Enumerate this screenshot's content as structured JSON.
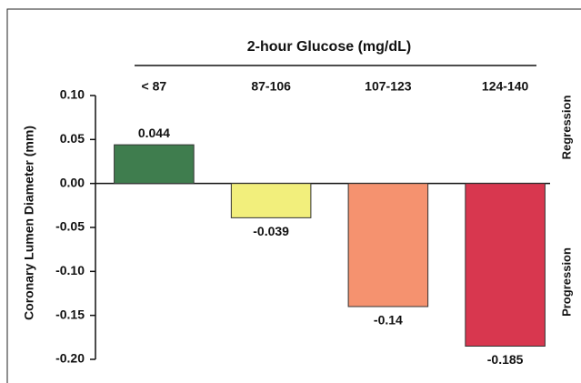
{
  "chart_data": {
    "type": "bar",
    "title": "2-hour Glucose (mg/dL)",
    "y_label": "Coronary Lumen Diameter (mm)",
    "annotations": [
      "Regression",
      "Progression"
    ],
    "categories": [
      "< 87",
      "87-106",
      "107-123",
      "124-140"
    ],
    "values": [
      0.044,
      -0.039,
      -0.14,
      -0.185
    ],
    "colors": [
      "#3f7d4e",
      "#f2ef7c",
      "#f5926f",
      "#d8374f"
    ],
    "ylim": [
      -0.2,
      0.1
    ],
    "yticks": [
      {
        "value": 0.1,
        "label": "0.10"
      },
      {
        "value": 0.05,
        "label": "0.05"
      },
      {
        "value": 0,
        "label": "0.00"
      },
      {
        "value": -0.05,
        "label": "-0.05"
      },
      {
        "value": -0.1,
        "label": "-0.10"
      },
      {
        "value": -0.15,
        "label": "-0.15"
      },
      {
        "value": -0.2,
        "label": "-0.20"
      }
    ]
  }
}
